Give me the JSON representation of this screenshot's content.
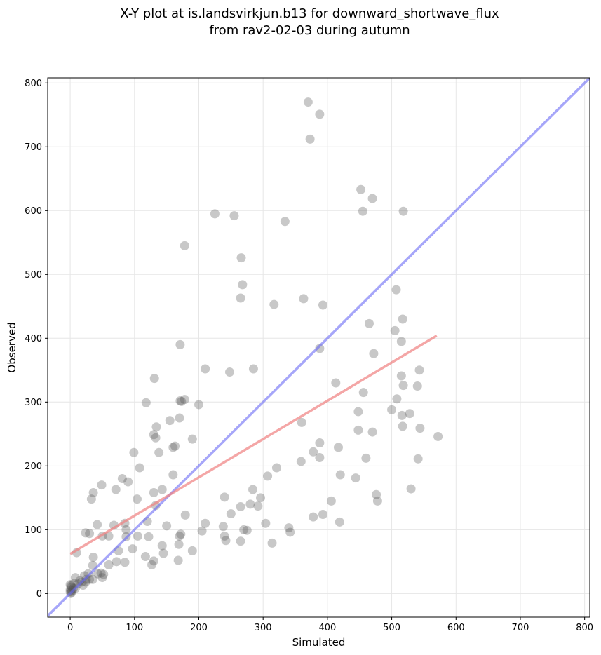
{
  "chart_data": {
    "type": "scatter",
    "title_line1": "X-Y plot at is.landsvirkjun.b13 for downward_shortwave_flux",
    "title_line2": "from rav2-02-03 during autumn",
    "xlabel": "Simulated",
    "ylabel": "Observed",
    "xlim": [
      -35,
      808
    ],
    "ylim": [
      -37,
      808
    ],
    "xticks": [
      0,
      100,
      200,
      300,
      400,
      500,
      600,
      700,
      800
    ],
    "yticks": [
      0,
      100,
      200,
      300,
      400,
      500,
      600,
      700,
      800
    ],
    "grid": true,
    "colors": {
      "points": "#555555",
      "identity_line": "#6a6af5",
      "fit_line": "#f08080"
    },
    "identity_line": {
      "x": [
        -35,
        808
      ],
      "y": [
        -35,
        808
      ]
    },
    "fit_line": {
      "x": [
        0,
        570
      ],
      "y": [
        62,
        404
      ]
    },
    "points": [
      [
        370,
        770
      ],
      [
        388,
        751
      ],
      [
        373,
        712
      ],
      [
        452,
        633
      ],
      [
        470,
        619
      ],
      [
        225,
        595
      ],
      [
        255,
        592
      ],
      [
        455,
        599
      ],
      [
        518,
        599
      ],
      [
        334,
        583
      ],
      [
        178,
        545
      ],
      [
        266,
        526
      ],
      [
        268,
        484
      ],
      [
        507,
        476
      ],
      [
        265,
        463
      ],
      [
        363,
        462
      ],
      [
        317,
        453
      ],
      [
        393,
        452
      ],
      [
        517,
        430
      ],
      [
        465,
        423
      ],
      [
        505,
        412
      ],
      [
        515,
        395
      ],
      [
        171,
        390
      ],
      [
        388,
        384
      ],
      [
        472,
        376
      ],
      [
        508,
        305
      ],
      [
        515,
        341
      ],
      [
        543,
        350
      ],
      [
        210,
        352
      ],
      [
        285,
        352
      ],
      [
        248,
        347
      ],
      [
        131,
        337
      ],
      [
        413,
        330
      ],
      [
        518,
        326
      ],
      [
        540,
        325
      ],
      [
        171,
        302
      ],
      [
        173,
        301
      ],
      [
        178,
        304
      ],
      [
        200,
        296
      ],
      [
        118,
        299
      ],
      [
        456,
        315
      ],
      [
        500,
        288
      ],
      [
        528,
        282
      ],
      [
        448,
        285
      ],
      [
        516,
        279
      ],
      [
        170,
        275
      ],
      [
        155,
        271
      ],
      [
        360,
        268
      ],
      [
        134,
        261
      ],
      [
        517,
        262
      ],
      [
        448,
        256
      ],
      [
        544,
        259
      ],
      [
        470,
        253
      ],
      [
        130,
        249
      ],
      [
        133,
        244
      ],
      [
        190,
        242
      ],
      [
        572,
        246
      ],
      [
        160,
        229
      ],
      [
        163,
        231
      ],
      [
        378,
        222
      ],
      [
        99,
        221
      ],
      [
        138,
        221
      ],
      [
        388,
        236
      ],
      [
        417,
        229
      ],
      [
        388,
        213
      ],
      [
        108,
        197
      ],
      [
        321,
        197
      ],
      [
        359,
        207
      ],
      [
        460,
        212
      ],
      [
        541,
        211
      ],
      [
        160,
        186
      ],
      [
        307,
        184
      ],
      [
        420,
        186
      ],
      [
        444,
        181
      ],
      [
        81,
        180
      ],
      [
        90,
        175
      ],
      [
        49,
        170
      ],
      [
        36,
        158
      ],
      [
        130,
        158
      ],
      [
        143,
        163
      ],
      [
        284,
        163
      ],
      [
        530,
        164
      ],
      [
        71,
        163
      ],
      [
        33,
        148
      ],
      [
        104,
        148
      ],
      [
        240,
        151
      ],
      [
        476,
        155
      ],
      [
        406,
        145
      ],
      [
        292,
        137
      ],
      [
        296,
        150
      ],
      [
        133,
        138
      ],
      [
        265,
        136
      ],
      [
        478,
        145
      ],
      [
        280,
        140
      ],
      [
        179,
        123
      ],
      [
        120,
        113
      ],
      [
        250,
        125
      ],
      [
        393,
        124
      ],
      [
        378,
        120
      ],
      [
        210,
        110
      ],
      [
        304,
        110
      ],
      [
        419,
        112
      ],
      [
        42,
        108
      ],
      [
        68,
        107
      ],
      [
        85,
        110
      ],
      [
        87,
        100
      ],
      [
        150,
        106
      ],
      [
        238,
        105
      ],
      [
        340,
        103
      ],
      [
        270,
        100
      ],
      [
        275,
        99
      ],
      [
        24,
        95
      ],
      [
        30,
        94
      ],
      [
        50,
        90
      ],
      [
        60,
        90
      ],
      [
        87,
        89
      ],
      [
        105,
        90
      ],
      [
        122,
        89
      ],
      [
        170,
        90
      ],
      [
        172,
        93
      ],
      [
        205,
        98
      ],
      [
        240,
        90
      ],
      [
        242,
        83
      ],
      [
        265,
        82
      ],
      [
        314,
        79
      ],
      [
        342,
        96
      ],
      [
        143,
        75
      ],
      [
        169,
        77
      ],
      [
        97,
        70
      ],
      [
        75,
        67
      ],
      [
        190,
        67
      ],
      [
        145,
        63
      ],
      [
        36,
        57
      ],
      [
        117,
        58
      ],
      [
        72,
        50
      ],
      [
        130,
        51
      ],
      [
        168,
        52
      ],
      [
        85,
        49
      ],
      [
        127,
        45
      ],
      [
        35,
        44
      ],
      [
        60,
        45
      ],
      [
        10,
        64
      ],
      [
        48,
        32
      ],
      [
        52,
        30
      ],
      [
        43,
        31
      ],
      [
        50,
        25
      ],
      [
        35,
        22
      ],
      [
        28,
        31
      ],
      [
        25,
        22
      ],
      [
        22,
        28
      ],
      [
        15,
        20
      ],
      [
        8,
        25
      ],
      [
        18,
        18
      ],
      [
        20,
        13
      ],
      [
        24,
        18
      ],
      [
        30,
        22
      ],
      [
        12,
        15
      ],
      [
        5,
        8
      ],
      [
        2,
        10
      ],
      [
        1,
        12
      ],
      [
        0,
        6
      ],
      [
        0,
        3
      ],
      [
        2,
        2
      ],
      [
        1,
        0
      ],
      [
        3,
        5
      ],
      [
        0,
        14
      ],
      [
        6,
        16
      ],
      [
        8,
        8
      ]
    ]
  }
}
